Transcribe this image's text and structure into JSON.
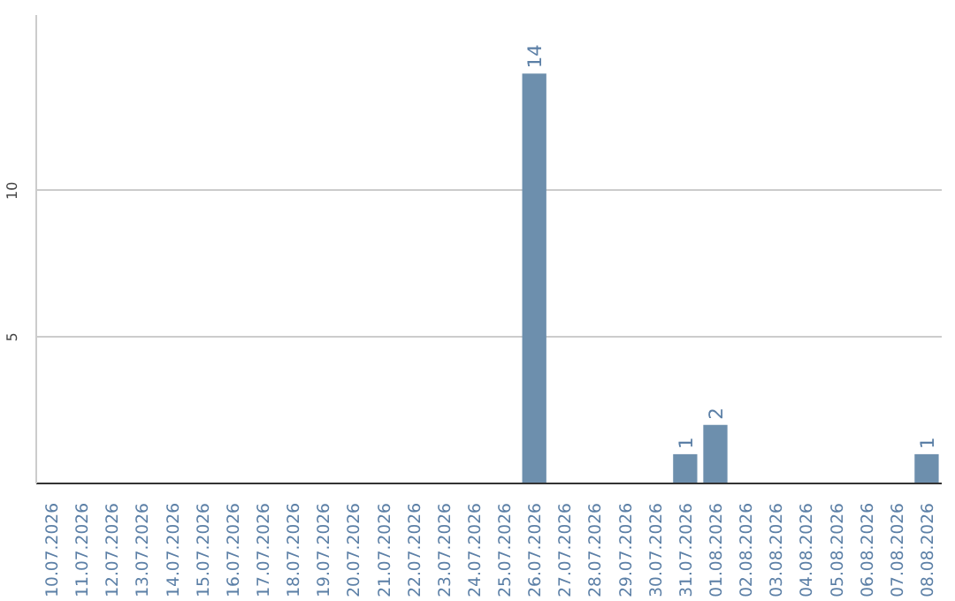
{
  "chart_data": {
    "type": "bar",
    "categories": [
      "10.07.2026",
      "11.07.2026",
      "12.07.2026",
      "13.07.2026",
      "14.07.2026",
      "15.07.2026",
      "16.07.2026",
      "17.07.2026",
      "18.07.2026",
      "19.07.2026",
      "20.07.2026",
      "21.07.2026",
      "22.07.2026",
      "23.07.2026",
      "24.07.2026",
      "25.07.2026",
      "26.07.2026",
      "27.07.2026",
      "28.07.2026",
      "29.07.2026",
      "30.07.2026",
      "31.07.2026",
      "01.08.2026",
      "02.08.2026",
      "03.08.2026",
      "04.08.2026",
      "05.08.2026",
      "06.08.2026",
      "07.08.2026",
      "08.08.2026"
    ],
    "values": [
      0,
      0,
      0,
      0,
      0,
      0,
      0,
      0,
      0,
      0,
      0,
      0,
      0,
      0,
      0,
      0,
      14,
      0,
      0,
      0,
      0,
      1,
      2,
      0,
      0,
      0,
      0,
      0,
      0,
      1
    ],
    "value_labels": [
      null,
      null,
      null,
      null,
      null,
      null,
      null,
      null,
      null,
      null,
      null,
      null,
      null,
      null,
      null,
      null,
      "14",
      null,
      null,
      null,
      null,
      "1",
      "2",
      null,
      null,
      null,
      null,
      null,
      null,
      "1"
    ],
    "color": "#6d8fad",
    "ylim": [
      0,
      16
    ],
    "yticks": [
      5,
      10
    ],
    "grid": "y"
  }
}
